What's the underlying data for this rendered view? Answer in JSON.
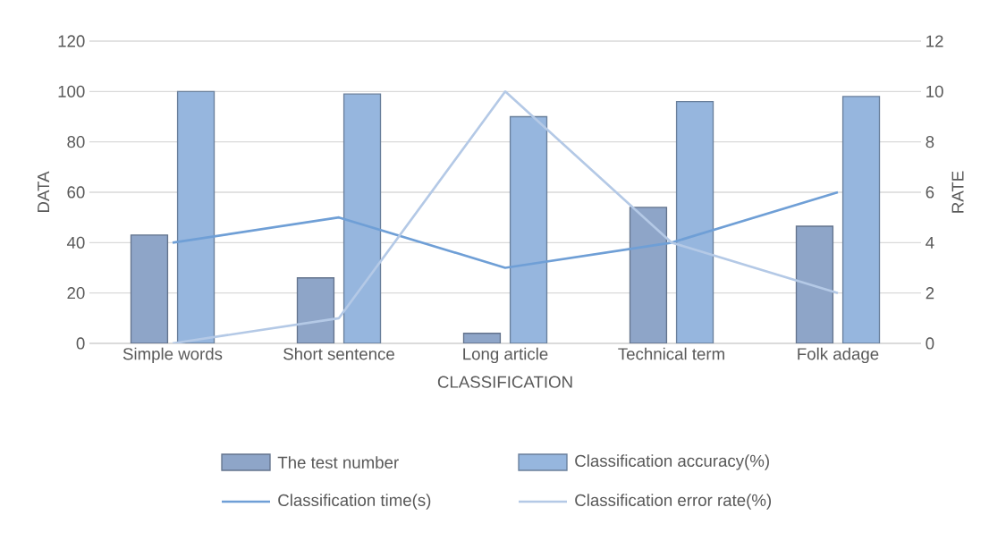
{
  "chart_data": {
    "type": "bar",
    "xlabel": "CLASSIFICATION",
    "ylabel": "DATA",
    "y2label": "RATE",
    "categories": [
      "Simple words",
      "Short sentence",
      "Long article",
      "Technical term",
      "Folk adage"
    ],
    "series": [
      {
        "name": "The test number",
        "color": "#8ea5c8",
        "values": [
          43,
          26,
          4,
          54,
          46.5
        ]
      },
      {
        "name": "Classification accuracy(%)",
        "color": "#96b6de",
        "values": [
          100,
          99,
          90,
          96,
          98
        ]
      },
      {
        "name": "Classification time(s)",
        "type": "line",
        "axis": "y2",
        "color": "#6f9fd6",
        "values": [
          4,
          5,
          3,
          4,
          6
        ]
      },
      {
        "name": "Classification error rate(%)",
        "type": "line",
        "axis": "y2",
        "color": "#b4c9e6",
        "values": [
          0,
          1,
          10,
          4,
          2
        ]
      }
    ],
    "ylim": [
      0,
      120
    ],
    "yticks": [
      0,
      20,
      40,
      60,
      80,
      100,
      120
    ],
    "y2lim": [
      0,
      12
    ],
    "y2ticks": [
      0,
      2,
      4,
      6,
      8,
      10,
      12
    ],
    "grid": "y",
    "legend": "bottom"
  }
}
